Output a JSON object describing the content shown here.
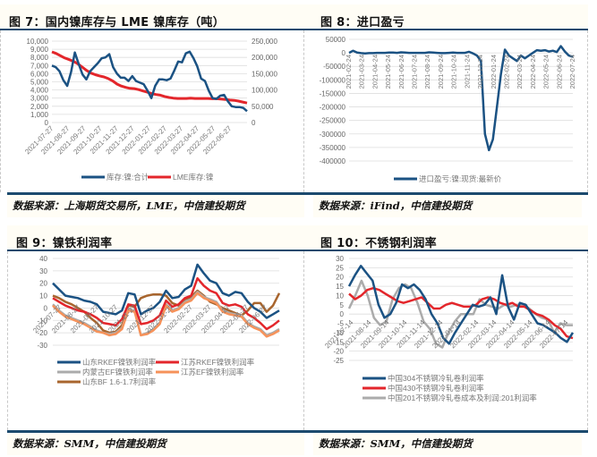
{
  "panels": [
    {
      "title": "图 7：国内镍库存与 LME 镍库存（吨）",
      "source": "数据来源：上海期货交易所，LME，中信建投期货"
    },
    {
      "title": "图 8：进口盈亏",
      "source": "数据来源：iFind，中信建投期货"
    },
    {
      "title": "图 9：镍铁利润率",
      "source": "数据来源：SMM，中信建投期货"
    },
    {
      "title": "图 10：不锈钢利润率",
      "source": "数据来源：SMM，中信建投期货"
    }
  ],
  "colors": {
    "navy": "#1b5283",
    "red": "#e3262b",
    "gray": "#ababab",
    "orange": "#f6925a",
    "brown": "#a8652e",
    "header_rule": "#1c4a6e"
  },
  "chart_data": [
    {
      "type": "line",
      "title": "图 7：国内镍库存与 LME 镍库存（吨）",
      "categories": [
        "2021-07-27",
        "2021-08-27",
        "2021-09-27",
        "2021-10-27",
        "2021-11-27",
        "2021-12-27",
        "2022-01-27",
        "2022-02-27",
        "2022-03-27",
        "2022-04-27",
        "2022-05-27",
        "2022-06-27"
      ],
      "left_axis": {
        "ylim": [
          0,
          10000
        ],
        "ticks": [
          "10,000",
          "9,000",
          "8,000",
          "7,000",
          "6,000",
          "5,000",
          "4,000",
          "3,000",
          "2,000",
          "1,000",
          "0"
        ]
      },
      "right_axis": {
        "ylim": [
          0,
          250000
        ],
        "ticks": [
          "250,000",
          "200,000",
          "150,000",
          "100,000",
          "50,000",
          "0"
        ]
      },
      "series": [
        {
          "name": "库存:镍:合计",
          "axis": "left",
          "color": "#1b5283",
          "values": [
            7000,
            6800,
            6300,
            5200,
            4500,
            6200,
            8600,
            7200,
            5900,
            5300,
            6300,
            6800,
            7300,
            7900,
            8000,
            8400,
            6800,
            6000,
            5500,
            5500,
            5100,
            5700,
            5100,
            4900,
            4700,
            3900,
            3000,
            4500,
            5300,
            5300,
            5200,
            5400,
            6400,
            7500,
            7400,
            8500,
            8700,
            7900,
            6900,
            5400,
            5100,
            3900,
            3000,
            2900,
            3300,
            3400,
            2600,
            2000,
            1900,
            1900,
            1800,
            1400
          ]
        },
        {
          "name": "LME库存:镍",
          "axis": "right",
          "color": "#e3262b",
          "values": [
            217000,
            212000,
            205000,
            198000,
            193000,
            188000,
            180000,
            170000,
            160000,
            152000,
            147000,
            143000,
            140000,
            135000,
            128000,
            118000,
            112000,
            108000,
            105000,
            104000,
            101000,
            97000,
            93000,
            89000,
            86000,
            84000,
            80000,
            77000,
            75000,
            74000,
            74000,
            74000,
            75000,
            74000,
            74000,
            74000,
            74000,
            73000,
            73000,
            72000,
            71000,
            69000,
            68000,
            66000,
            63000,
            60000
          ]
        }
      ],
      "legend_position": "bottom"
    },
    {
      "type": "line",
      "title": "图 8：进口盈亏",
      "categories": [
        "2021-02-24",
        "2021-03-24",
        "2021-04-24",
        "2021-05-24",
        "2021-06-24",
        "2021-07-24",
        "2021-08-24",
        "2021-09-24",
        "2021-10-24",
        "2021-11-24",
        "2021-12-24",
        "2022-01-24",
        "2022-02-24",
        "2022-03-24",
        "2022-04-24",
        "2022-05-24",
        "2022-06-24",
        "2022-07-24"
      ],
      "ylim": [
        -400000,
        50000
      ],
      "ticks": [
        "50000",
        "0",
        "-50000",
        "-100000",
        "-150000",
        "-200000",
        "-250000",
        "-300000",
        "-350000",
        "-400000"
      ],
      "series": [
        {
          "name": "进口盈亏:镍:现货:最新价",
          "color": "#1b5283",
          "values": [
            0,
            8000,
            1000,
            -1000,
            -2000,
            -1000,
            -1000,
            0,
            0,
            0,
            1000,
            1000,
            0,
            2000,
            1000,
            0,
            0,
            0,
            0,
            0,
            2000,
            1000,
            0,
            -1000,
            -1000,
            0,
            1000,
            0,
            0,
            0,
            4000,
            -2000,
            -10000,
            -30000,
            -300000,
            -360000,
            -320000,
            -200000,
            -80000,
            12000,
            -10000,
            -20000,
            -30000,
            -10000,
            -20000,
            -10000,
            0,
            10000,
            8000,
            10000,
            5000,
            8000,
            3000,
            25000,
            5000,
            -10000,
            -15000
          ]
        }
      ],
      "legend_position": "bottom"
    },
    {
      "type": "line",
      "title": "图 9：镍铁利润率",
      "categories": [
        "2021-07-27",
        "2021-08-27",
        "2021-09-27",
        "2021-10-27",
        "2021-11-27",
        "2021-12-27",
        "2022-01-27",
        "2022-02-27",
        "2022-03-27",
        "2022-04-27",
        "2022-05-27",
        "2022-06-27"
      ],
      "ylim": [
        -30,
        40
      ],
      "ticks": [
        "40",
        "30",
        "20",
        "10",
        "0",
        "-10",
        "-20",
        "-30"
      ],
      "series": [
        {
          "name": "山东RKEF镍铁利润率",
          "color": "#1b5283",
          "values": [
            20,
            15,
            10,
            9,
            8,
            6,
            5,
            3,
            -3,
            -4,
            -5,
            -2,
            12,
            11,
            -5,
            -2,
            0,
            5,
            14,
            8,
            9,
            15,
            18,
            35,
            28,
            22,
            20,
            12,
            10,
            13,
            12,
            5,
            0,
            -3,
            -8,
            -5,
            -2
          ]
        },
        {
          "name": "江苏RKEF镍铁利润率",
          "color": "#e3262b",
          "values": [
            8,
            5,
            2,
            0,
            -2,
            -3,
            -5,
            -8,
            -12,
            -13,
            -14,
            -9,
            3,
            2,
            -13,
            -12,
            -10,
            -6,
            6,
            1,
            3,
            8,
            10,
            24,
            18,
            14,
            12,
            4,
            2,
            3,
            1,
            -5,
            -8,
            -12,
            -17,
            -14,
            -10
          ]
        },
        {
          "name": "内蒙古EF镍铁利润率",
          "color": "#ababab",
          "values": [
            3,
            -2,
            -6,
            -8,
            -10,
            -12,
            -15,
            -18,
            -20,
            -21,
            -20,
            -16,
            -1,
            -2,
            -22,
            -20,
            -17,
            -12,
            3,
            -2,
            0,
            5,
            7,
            13,
            9,
            7,
            5,
            -2,
            -4,
            -5,
            -6,
            -12,
            -15,
            -17,
            -22,
            -20,
            -17
          ]
        },
        {
          "name": "江苏EF镍铁利润率",
          "color": "#f6925a",
          "values": [
            2,
            -3,
            -7,
            -9,
            -11,
            -13,
            -16,
            -19,
            -20,
            -22,
            -21,
            -17,
            -2,
            -3,
            -22,
            -21,
            -18,
            -13,
            2,
            -3,
            -1,
            4,
            6,
            12,
            8,
            6,
            4,
            -3,
            -5,
            -6,
            -7,
            -13,
            -16,
            -18,
            -23,
            -21,
            -18
          ]
        },
        {
          "name": "山东BF 1.6-1.7利润率",
          "color": "#a8652e",
          "values": [
            10,
            8,
            5,
            3,
            0,
            -3,
            -8,
            -12,
            -18,
            -20,
            -19,
            -14,
            2,
            1,
            8,
            10,
            11,
            11,
            10,
            4,
            2,
            7,
            9,
            14,
            10,
            5,
            3,
            0,
            -2,
            -4,
            -6,
            -2,
            4,
            4,
            -3,
            2,
            12
          ]
        }
      ],
      "legend_position": "bottom"
    },
    {
      "type": "line",
      "title": "图 10：不锈钢利润率",
      "categories": [
        "2021-07-14",
        "2021-08-14",
        "2021-09-14",
        "2021-10-14",
        "2021-11-14",
        "2021-12-14",
        "2022-01-14",
        "2022-02-14",
        "2022-03-14",
        "2022-04-14",
        "2022-05-14",
        "2022-06-14",
        "2022-07-14"
      ],
      "ylim": [
        -25,
        30
      ],
      "ticks": [
        "30",
        "25",
        "20",
        "15",
        "10",
        "5",
        "0",
        "-5",
        "-10",
        "-15",
        "-20",
        "-25"
      ],
      "series": [
        {
          "name": "中国304不锈钢冷轧卷利润率",
          "color": "#1b5283",
          "values": [
            15,
            21,
            26,
            22,
            18,
            5,
            -2,
            0,
            6,
            16,
            14,
            16,
            13,
            8,
            0,
            -5,
            -13,
            -16,
            -10,
            -5,
            0,
            5,
            4,
            5,
            9,
            0,
            21,
            4,
            -3,
            6,
            5,
            0,
            -5,
            -6,
            -8,
            -10,
            -13,
            -15,
            -10
          ]
        },
        {
          "name": "中国430不锈钢冷轧卷利润率",
          "color": "#e3262b",
          "values": [
            11,
            8,
            10,
            13,
            14,
            13,
            11,
            9,
            7,
            6,
            7,
            8,
            9,
            6,
            3,
            3,
            5,
            6,
            5,
            4,
            4,
            5,
            8,
            9,
            8,
            6,
            5,
            6,
            4,
            4,
            2,
            0,
            -1,
            -3,
            -6,
            -8,
            -12,
            -13
          ]
        },
        {
          "name": "中国201不锈钢冷轧卷成本及利润:201利润率",
          "color": "#ababab",
          "values": [
            3,
            10,
            18,
            10,
            -2,
            -6,
            -4,
            8,
            14,
            16,
            14,
            6,
            -4,
            -8,
            -16,
            -18,
            -10,
            -4,
            0,
            0,
            0,
            8,
            5,
            4,
            3,
            5,
            4,
            5,
            5,
            3,
            0,
            -2,
            -3,
            -10,
            -5,
            -6,
            -6
          ]
        }
      ],
      "legend_position": "bottom"
    }
  ]
}
